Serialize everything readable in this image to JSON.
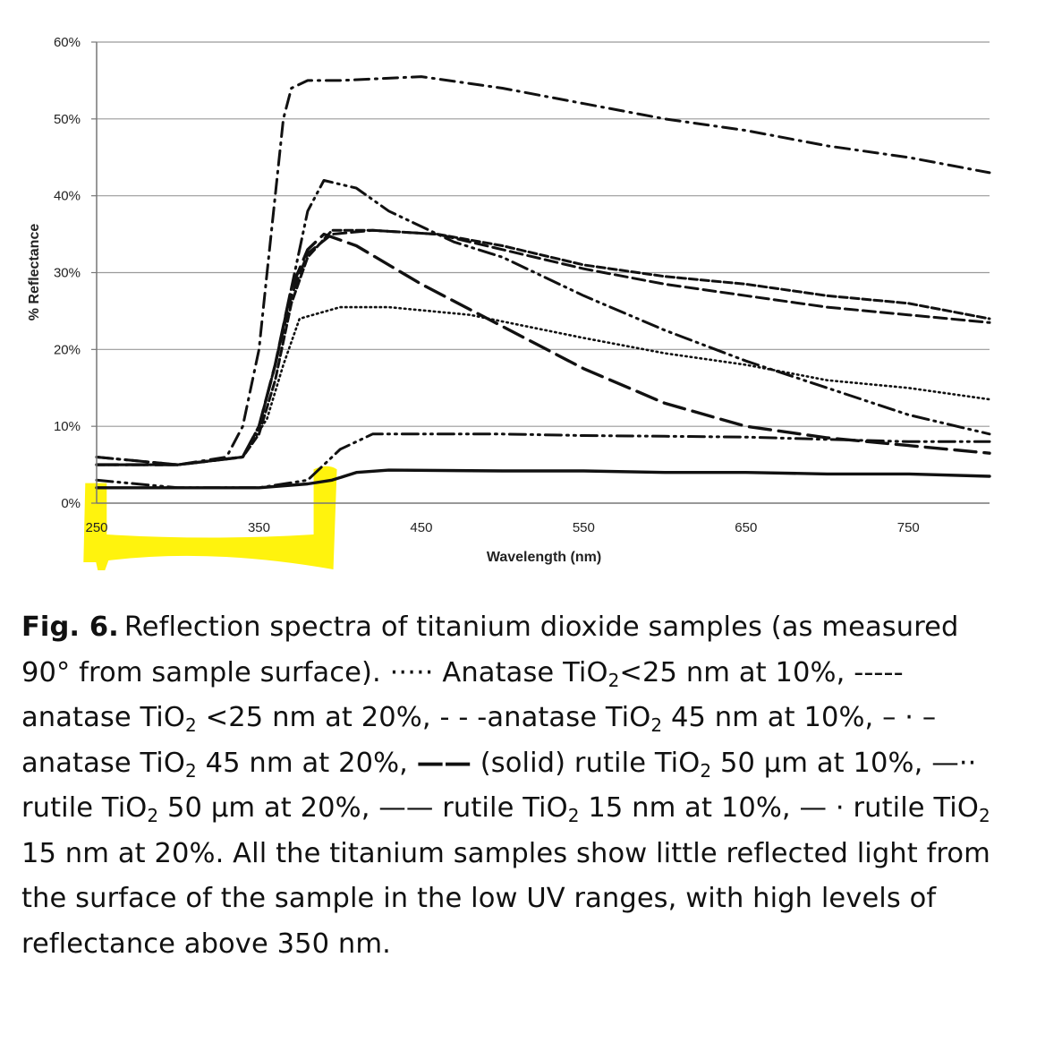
{
  "chart_data": {
    "type": "line",
    "title": "",
    "xlabel": "Wavelength (nm)",
    "ylabel": "% Reflectance",
    "xlim": [
      250,
      800
    ],
    "ylim": [
      0,
      60
    ],
    "x_ticks": [
      250,
      350,
      450,
      550,
      650,
      750
    ],
    "x_tick_labels": [
      "250",
      "350",
      "450",
      "550",
      "650",
      "750"
    ],
    "y_ticks": [
      0,
      10,
      20,
      30,
      40,
      50,
      60
    ],
    "y_tick_labels": [
      "0%",
      "10%",
      "20%",
      "30%",
      "40%",
      "50%",
      "60%"
    ],
    "grid": "horizontal",
    "highlight": {
      "x_from": 243,
      "x_to": 398,
      "color": "#fff200"
    },
    "series": [
      {
        "name": "Anatase TiO2 <25 nm at 10%",
        "style": "dotted",
        "x": [
          250,
          300,
          340,
          355,
          365,
          375,
          400,
          430,
          480,
          550,
          600,
          650,
          700,
          750,
          800
        ],
        "y": [
          5,
          5,
          6,
          11,
          18,
          24,
          25.5,
          25.5,
          24.5,
          21.5,
          19.5,
          18,
          16,
          15,
          13.5
        ]
      },
      {
        "name": "anatase TiO2 <25 nm at 20%",
        "style": "dash-fine",
        "x": [
          250,
          300,
          340,
          350,
          360,
          370,
          380,
          395,
          420,
          460,
          500,
          550,
          600,
          650,
          700,
          750,
          800
        ],
        "y": [
          5,
          5,
          6,
          9,
          16,
          26,
          32,
          35.5,
          35.5,
          35,
          33.5,
          31,
          29.5,
          28.5,
          27,
          26,
          24
        ]
      },
      {
        "name": "anatase TiO2 45 nm at 10%",
        "style": "dashed",
        "x": [
          250,
          300,
          340,
          350,
          360,
          370,
          380,
          395,
          420,
          460,
          500,
          550,
          600,
          650,
          700,
          750,
          800
        ],
        "y": [
          5,
          5,
          6,
          10,
          18,
          27,
          32.5,
          35,
          35.5,
          35,
          33,
          30.5,
          28.5,
          27,
          25.5,
          24.5,
          23.5
        ]
      },
      {
        "name": "anatase TiO2 45 nm at 20%",
        "style": "dash-dot-dot",
        "x": [
          250,
          300,
          340,
          350,
          360,
          370,
          380,
          390,
          410,
          430,
          470,
          500,
          550,
          600,
          650,
          700,
          750,
          800
        ],
        "y": [
          6,
          5,
          6,
          10,
          18,
          28,
          38,
          42,
          41,
          38,
          34,
          32,
          27,
          22.5,
          18.5,
          15,
          11.5,
          9
        ]
      },
      {
        "name": "rutile TiO2 50 µm at 10%",
        "style": "solid",
        "x": [
          250,
          300,
          350,
          380,
          395,
          410,
          430,
          500,
          550,
          600,
          650,
          700,
          750,
          800
        ],
        "y": [
          2,
          2,
          2,
          2.5,
          3,
          4,
          4.3,
          4.2,
          4.2,
          4,
          4,
          3.8,
          3.8,
          3.5
        ]
      },
      {
        "name": "rutile TiO2 50 µm at 20%",
        "style": "dash-dot-dot",
        "x": [
          250,
          300,
          350,
          380,
          400,
          420,
          450,
          500,
          550,
          600,
          650,
          700,
          750,
          800
        ],
        "y": [
          3,
          2,
          2,
          3,
          7,
          9,
          9,
          9,
          8.8,
          8.7,
          8.6,
          8.3,
          8,
          8
        ]
      },
      {
        "name": "rutile TiO2 15 nm at 10%",
        "style": "long-dash",
        "x": [
          250,
          300,
          340,
          350,
          360,
          370,
          380,
          390,
          410,
          450,
          500,
          550,
          600,
          650,
          700,
          750,
          800
        ],
        "y": [
          5,
          5,
          6,
          10,
          18,
          28,
          33,
          35,
          33.5,
          28.5,
          23,
          17.5,
          13,
          10,
          8.5,
          7.5,
          6.5
        ]
      },
      {
        "name": "rutile TiO2 15 nm at 20%",
        "style": "dash-dot",
        "x": [
          250,
          300,
          330,
          340,
          350,
          355,
          360,
          365,
          370,
          380,
          400,
          450,
          500,
          550,
          600,
          650,
          700,
          750,
          800
        ],
        "y": [
          6,
          5,
          6,
          10,
          20,
          30,
          40,
          50,
          54,
          55,
          55,
          55.5,
          54,
          52,
          50,
          48.5,
          46.5,
          45,
          43
        ]
      }
    ]
  },
  "caption": {
    "label": "Fig. 6.",
    "text_1": "Reflection spectra of titanium dioxide samples (as measured 90° from sample surface). ",
    "sym_1": "·····",
    "text_2": " Anatase TiO",
    "sub_1": "2",
    "text_3": "<25 nm at 10%, ",
    "sym_2": "-----",
    "text_4": " anatase TiO",
    "sub_2": "2",
    "text_5": " <25 nm at 20%, ",
    "sym_3": "- - -",
    "text_6": "anatase TiO",
    "sub_3": "2",
    "text_7": " 45 nm at 10%, ",
    "sym_4": "– · –",
    "text_8": " anatase TiO",
    "sub_4": "2",
    "text_9": " 45 nm at 20%, ",
    "sym_5": "——",
    "text_10": " (solid) rutile TiO",
    "sub_5": "2",
    "text_11": " 50 µm at 10%, ",
    "sym_6": "—··",
    "text_12": " rutile TiO",
    "sub_6": "2",
    "text_13": " 50 µm at 20%, ",
    "sym_7": "——",
    "text_14": " rutile TiO",
    "sub_7": "2",
    "text_15": " 15 nm at 10%, ",
    "sym_8": "— ·",
    "text_16": " rutile TiO",
    "sub_8": "2",
    "text_17": " 15 nm at 20%. All the titanium samples show little reflected light from the surface of the sample in the low UV ranges, with high levels of reflectance above 350 nm."
  }
}
